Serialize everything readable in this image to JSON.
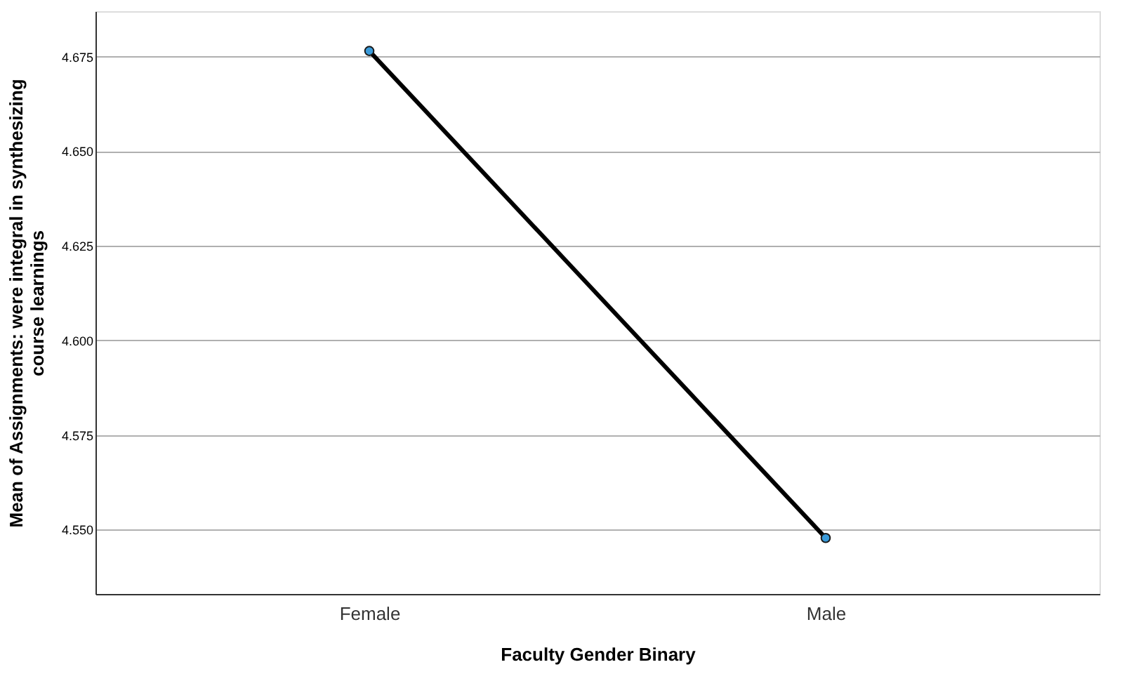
{
  "chart_data": {
    "type": "line",
    "xlabel": "Faculty Gender Binary",
    "ylabel": "Mean of Assignments: were integral in synthesizing\ncourse learnings",
    "categories": [
      "Female",
      "Male"
    ],
    "series": [
      {
        "color": "#000000",
        "values": [
          4.6765,
          4.5478
        ]
      }
    ],
    "marker": "circle",
    "line_style": "solid",
    "ylim": [
      4.533,
      4.687
    ],
    "yticks": [
      {
        "value": 4.55,
        "label": "4.550"
      },
      {
        "value": 4.575,
        "label": "4.575"
      },
      {
        "value": 4.6,
        "label": "4.600"
      },
      {
        "value": 4.625,
        "label": "4.625"
      },
      {
        "value": 4.65,
        "label": "4.650"
      },
      {
        "value": 4.675,
        "label": "4.675"
      }
    ],
    "grid": "y"
  }
}
